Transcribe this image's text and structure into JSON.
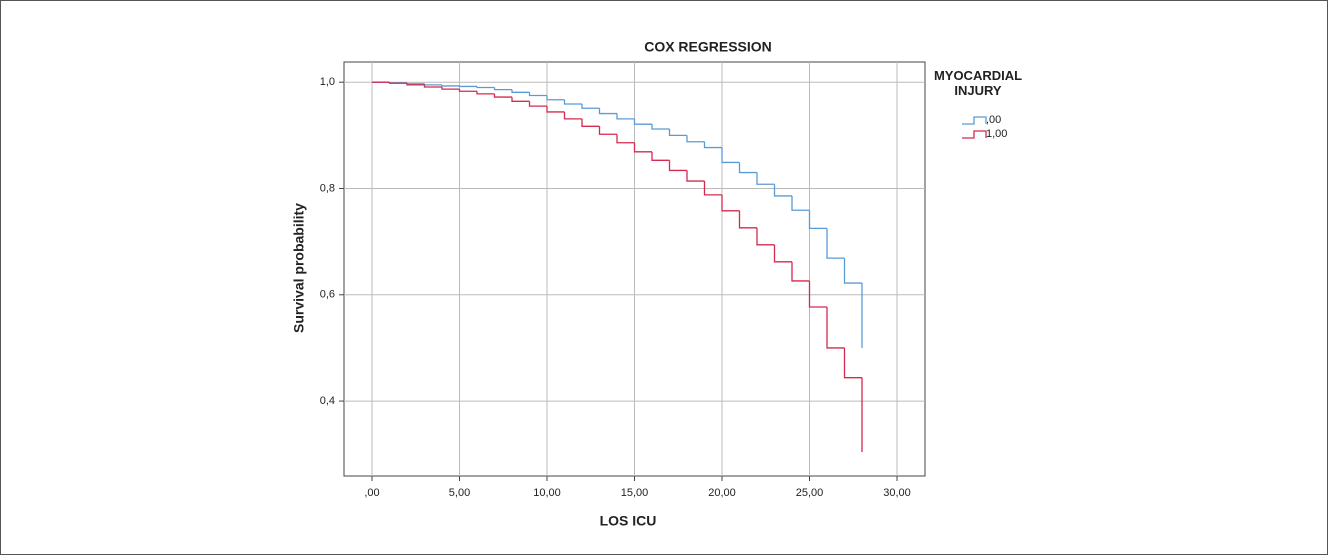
{
  "chart_data": {
    "type": "step",
    "title": "COX REGRESSION",
    "x_label": "LOS ICU",
    "y_label": "Survival probability",
    "legend_title": "MYOCARDIAL INJURY",
    "legend_position": "right",
    "grid": true,
    "x": [
      0,
      1,
      2,
      3,
      4,
      5,
      6,
      7,
      8,
      9,
      10,
      11,
      12,
      13,
      14,
      15,
      16,
      17,
      18,
      19,
      20,
      21,
      22,
      23,
      24,
      25,
      26,
      27,
      28
    ],
    "series": [
      {
        "name": ",00",
        "color": "#5b9bd5",
        "values": [
          1.0,
          0.999,
          0.997,
          0.995,
          0.993,
          0.992,
          0.99,
          0.986,
          0.981,
          0.975,
          0.967,
          0.959,
          0.951,
          0.941,
          0.931,
          0.921,
          0.912,
          0.9,
          0.888,
          0.877,
          0.849,
          0.83,
          0.808,
          0.786,
          0.759,
          0.725,
          0.669,
          0.622,
          0.5
        ]
      },
      {
        "name": "1,00",
        "color": "#d42a4f",
        "values": [
          1.0,
          0.998,
          0.995,
          0.991,
          0.987,
          0.983,
          0.978,
          0.972,
          0.964,
          0.955,
          0.944,
          0.931,
          0.917,
          0.902,
          0.886,
          0.869,
          0.853,
          0.834,
          0.814,
          0.788,
          0.758,
          0.726,
          0.694,
          0.662,
          0.626,
          0.577,
          0.5,
          0.444,
          0.304
        ]
      }
    ],
    "xlim": [
      -1.6,
      31.6
    ],
    "ylim": [
      0.259,
      1.038
    ],
    "xticks": [
      {
        "value": 0,
        "label": ",00"
      },
      {
        "value": 5,
        "label": "5,00"
      },
      {
        "value": 10,
        "label": "10,00"
      },
      {
        "value": 15,
        "label": "15,00"
      },
      {
        "value": 20,
        "label": "20,00"
      },
      {
        "value": 25,
        "label": "25,00"
      },
      {
        "value": 30,
        "label": "30,00"
      }
    ],
    "yticks": [
      {
        "value": 0.4,
        "label": "0,4"
      },
      {
        "value": 0.6,
        "label": "0,6"
      },
      {
        "value": 0.8,
        "label": "0,8"
      },
      {
        "value": 1.0,
        "label": "1,0"
      }
    ]
  }
}
